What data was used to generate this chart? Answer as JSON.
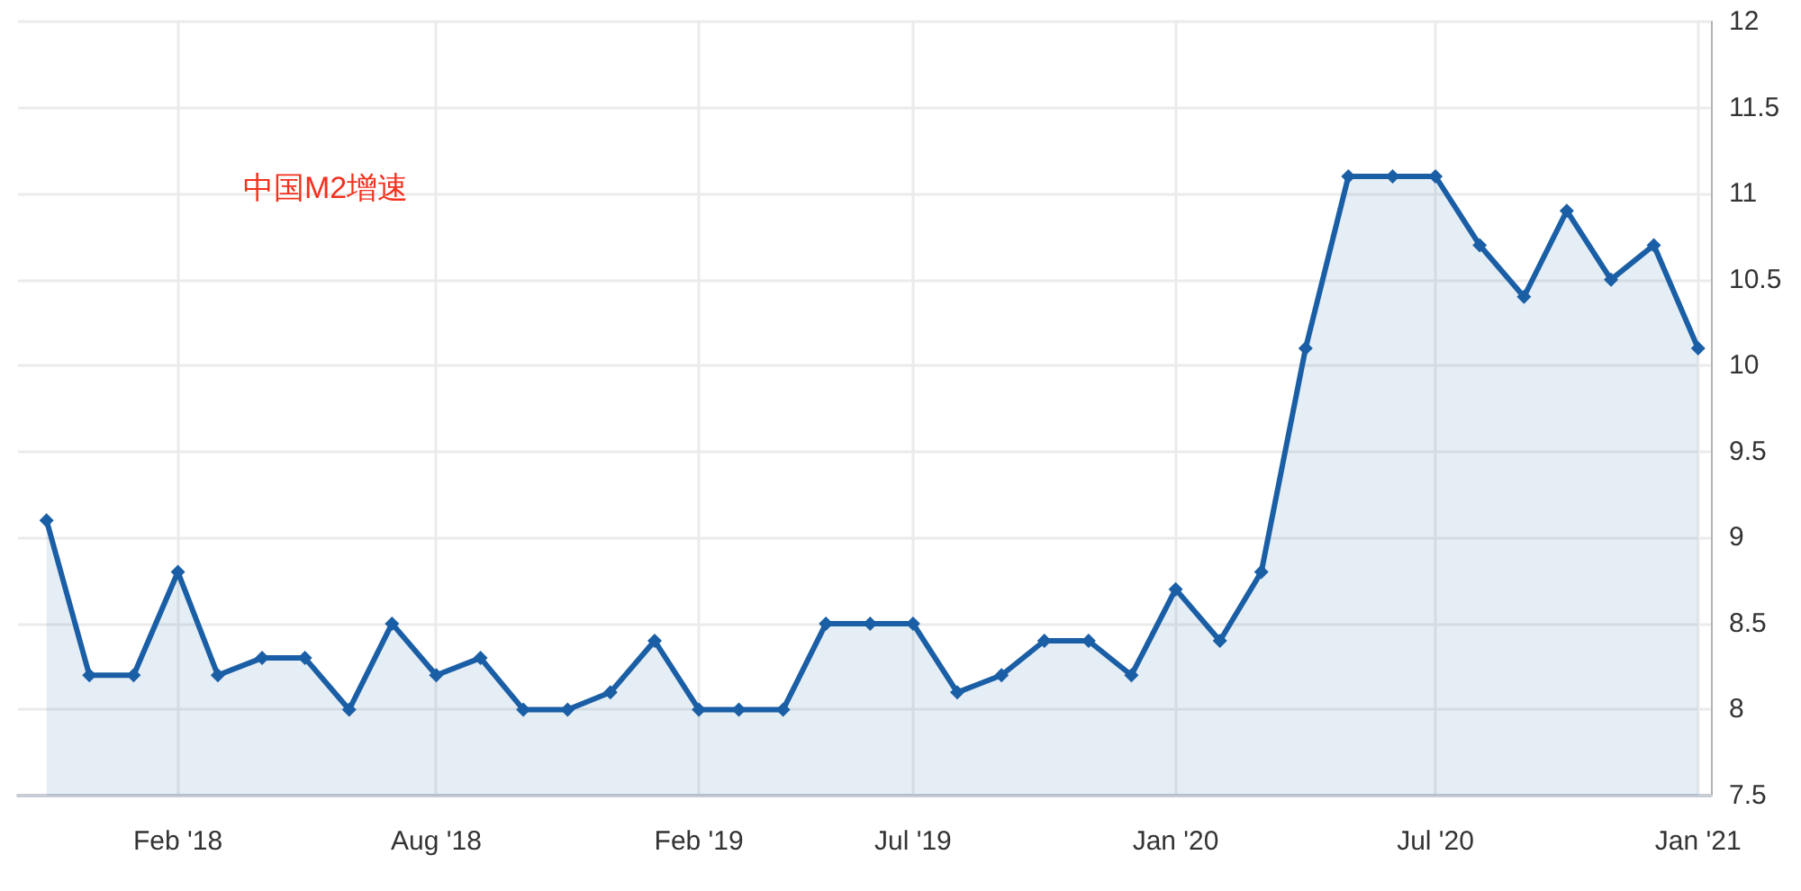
{
  "chart_data": {
    "type": "area",
    "annotations": [
      "中国M2增速"
    ],
    "x": [
      "2017-11",
      "2017-12",
      "2018-01",
      "2018-02",
      "2018-03",
      "2018-04",
      "2018-05",
      "2018-06",
      "2018-07",
      "2018-08",
      "2018-09",
      "2018-10",
      "2018-11",
      "2018-12",
      "2019-01",
      "2019-02",
      "2019-03",
      "2019-04",
      "2019-05",
      "2019-06",
      "2019-07",
      "2019-08",
      "2019-09",
      "2019-10",
      "2019-11",
      "2019-12",
      "2020-01",
      "2020-02",
      "2020-03",
      "2020-04",
      "2020-05",
      "2020-06",
      "2020-07",
      "2020-08",
      "2020-09",
      "2020-10",
      "2020-11",
      "2020-12",
      "2021-01"
    ],
    "series": [
      {
        "color": "#1a5fa6",
        "values": [
          9.1,
          8.2,
          8.2,
          8.8,
          8.2,
          8.3,
          8.3,
          8.0,
          8.5,
          8.2,
          8.3,
          8.0,
          8.0,
          8.1,
          8.4,
          8.0,
          8.0,
          8.0,
          8.5,
          8.5,
          8.5,
          8.1,
          8.2,
          8.4,
          8.4,
          8.2,
          8.7,
          8.4,
          8.8,
          10.1,
          11.1,
          11.1,
          11.1,
          10.7,
          10.4,
          10.9,
          10.5,
          10.7,
          10.1
        ]
      }
    ],
    "xlim": [
      "2017-10-12",
      "2021-01-10"
    ],
    "xticks": [
      {
        "value": "2018-02-01",
        "label": "Feb '18"
      },
      {
        "value": "2018-08-01",
        "label": "Aug '18"
      },
      {
        "value": "2019-02-01",
        "label": "Feb '19"
      },
      {
        "value": "2019-07-01",
        "label": "Jul '19"
      },
      {
        "value": "2020-01-01",
        "label": "Jan '20"
      },
      {
        "value": "2020-07-01",
        "label": "Jul '20"
      },
      {
        "value": "2021-01-01",
        "label": "Jan '21"
      }
    ],
    "ylim": [
      7.5,
      12
    ],
    "yticks": [
      7.5,
      8,
      8.5,
      9,
      9.5,
      10,
      10.5,
      11,
      11.5,
      12
    ],
    "grid": true,
    "marker": "diamond",
    "line_style": "solid"
  }
}
